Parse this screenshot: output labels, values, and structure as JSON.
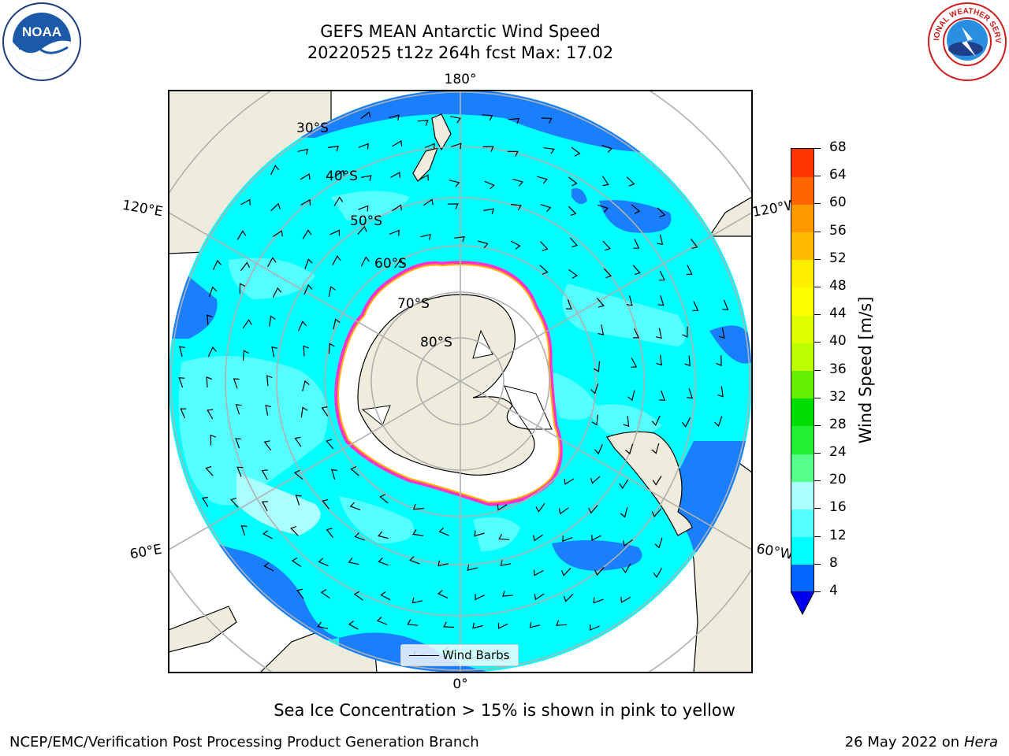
{
  "title": {
    "line1": "GEFS MEAN Antarctic Wind Speed",
    "line2": "20220525 t12z 264h fcst   Max: 17.02"
  },
  "logos": {
    "left": {
      "icon": "noaa-logo-icon",
      "text": "NOAA"
    },
    "right": {
      "icon": "national-weather-service-logo-icon",
      "text": "NATIONAL WEATHER SERVICE"
    }
  },
  "map": {
    "longitude_labels": {
      "top": "180°",
      "bottom": "0°",
      "upper_left": "120°E",
      "upper_right": "120°W",
      "lower_left": "60°E",
      "lower_right": "60°W"
    },
    "latitude_labels": [
      "30°S",
      "40°S",
      "50°S",
      "60°S",
      "70°S",
      "80°S"
    ],
    "legend_label": "Wind Barbs",
    "colors": {
      "ocean_low": "#1a7fff",
      "ocean_mid": "#00ffff",
      "ocean_high": "#55ffff",
      "land": "#eeecdc",
      "ice_edge": "#ff33cc",
      "ice_inner": "#ffb000"
    }
  },
  "colorbar": {
    "title": "Wind Speed [m/s]",
    "ticks": [
      "4",
      "8",
      "12",
      "16",
      "20",
      "24",
      "28",
      "32",
      "36",
      "40",
      "44",
      "48",
      "52",
      "56",
      "60",
      "64",
      "68"
    ],
    "colors": [
      "#0066ff",
      "#00ffff",
      "#55ffff",
      "#aaffff",
      "#55ff88",
      "#22ee33",
      "#00dd00",
      "#66ee00",
      "#bbff00",
      "#ddff00",
      "#ffff00",
      "#ffee00",
      "#ffbb00",
      "#ff9900",
      "#ff6600",
      "#ff3300",
      "#ff0000"
    ],
    "extend_color": "#0000ee"
  },
  "footnote": "Sea Ice Concentration > 15% is shown in pink to yellow",
  "credits": {
    "left": "NCEP/EMC/Verification Post Processing Product Generation Branch",
    "right_date": "26 May 2022 on",
    "right_machine": "Hera"
  }
}
